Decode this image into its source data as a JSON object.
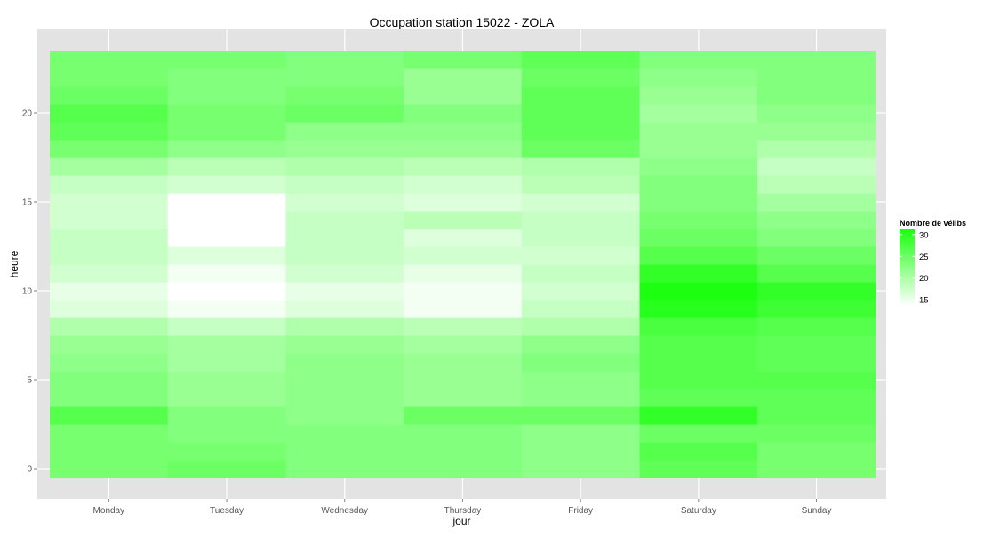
{
  "chart_data": {
    "type": "heatmap",
    "title": "Occupation station 15022 - ZOLA",
    "xlabel": "jour",
    "ylabel": "heure",
    "categories": [
      "Monday",
      "Tuesday",
      "Wednesday",
      "Thursday",
      "Friday",
      "Saturday",
      "Sunday"
    ],
    "y": [
      0,
      1,
      2,
      3,
      4,
      5,
      6,
      7,
      8,
      9,
      10,
      11,
      12,
      13,
      14,
      15,
      16,
      17,
      18,
      19,
      20,
      21,
      22,
      23
    ],
    "y_ticks": [
      0,
      5,
      10,
      15,
      20
    ],
    "ylim": [
      -0.5,
      23.5
    ],
    "values": [
      [
        25,
        25,
        25,
        28,
        24,
        24,
        23,
        22,
        20,
        16,
        15,
        17,
        18,
        18,
        17,
        17,
        18,
        21,
        25,
        27,
        28,
        26,
        25,
        25
      ],
      [
        26,
        25,
        24,
        24,
        22,
        22,
        21,
        21,
        18,
        14,
        13,
        14,
        16,
        13,
        13,
        13,
        17,
        19,
        23,
        25,
        25,
        24,
        24,
        25
      ],
      [
        24,
        24,
        24,
        23,
        23,
        23,
        23,
        22,
        20,
        16,
        15,
        17,
        18,
        18,
        18,
        17,
        18,
        20,
        22,
        23,
        26,
        25,
        24,
        24
      ],
      [
        24,
        24,
        24,
        26,
        22,
        22,
        22,
        21,
        19,
        14,
        14,
        15,
        17,
        16,
        19,
        16,
        17,
        19,
        22,
        23,
        24,
        22,
        22,
        25
      ],
      [
        23,
        23,
        23,
        26,
        23,
        23,
        24,
        23,
        20,
        18,
        17,
        18,
        17,
        18,
        18,
        17,
        19,
        20,
        26,
        27,
        27,
        27,
        26,
        27
      ],
      [
        27,
        28,
        26,
        31,
        27,
        28,
        28,
        28,
        29,
        32,
        33,
        31,
        28,
        26,
        25,
        24,
        24,
        23,
        22,
        22,
        21,
        22,
        23,
        24
      ],
      [
        25,
        25,
        26,
        27,
        27,
        28,
        27,
        27,
        28,
        30,
        31,
        28,
        26,
        24,
        23,
        21,
        19,
        18,
        20,
        22,
        23,
        24,
        24,
        24
      ]
    ],
    "legend": {
      "title": "Nombre de vélibs",
      "ticks": [
        15,
        20,
        25,
        30
      ],
      "low_color": "#ffffff",
      "high_color": "#1cff10",
      "range": [
        13,
        33
      ],
      "placement": "right"
    },
    "panel_color": "#e3e3e3",
    "grid": true
  }
}
